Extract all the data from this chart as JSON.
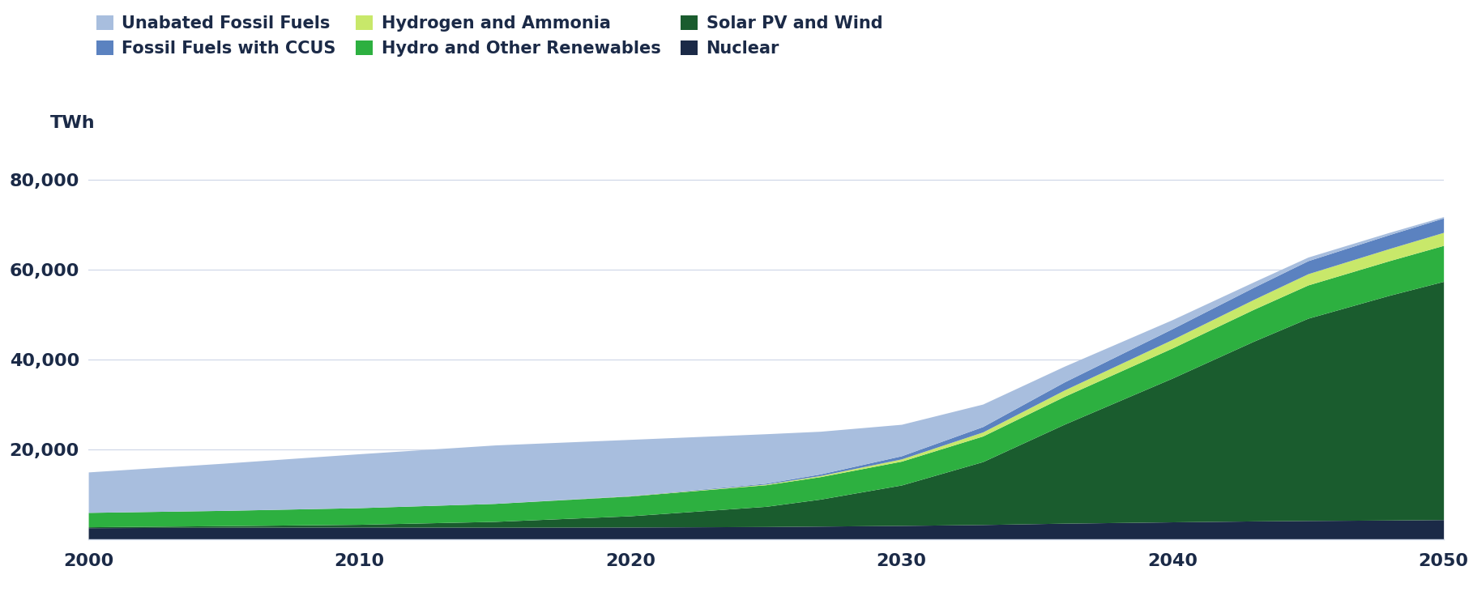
{
  "years": [
    2000,
    2005,
    2010,
    2015,
    2020,
    2025,
    2027,
    2030,
    2033,
    2036,
    2040,
    2043,
    2045,
    2048,
    2050
  ],
  "nuclear": [
    2600,
    2700,
    2750,
    2700,
    2750,
    2850,
    2950,
    3100,
    3300,
    3600,
    3900,
    4100,
    4200,
    4300,
    4400
  ],
  "solar_pv_wind": [
    200,
    350,
    600,
    1300,
    2500,
    4500,
    6000,
    9000,
    14000,
    22000,
    32000,
    40000,
    45000,
    50000,
    53000
  ],
  "hydro_other": [
    3200,
    3400,
    3700,
    4000,
    4400,
    4800,
    5000,
    5300,
    5700,
    6200,
    6700,
    7100,
    7400,
    7700,
    8000
  ],
  "hydrogen_ammonia": [
    0,
    0,
    0,
    0,
    50,
    150,
    250,
    500,
    900,
    1400,
    1900,
    2200,
    2500,
    2700,
    2900
  ],
  "fossil_ccus": [
    0,
    0,
    0,
    0,
    50,
    200,
    350,
    700,
    1200,
    1800,
    2400,
    2700,
    2900,
    3100,
    3200
  ],
  "unabated_fossil": [
    9000,
    10500,
    12000,
    13000,
    12500,
    11000,
    9500,
    7000,
    5000,
    3500,
    2000,
    1200,
    800,
    500,
    300
  ],
  "colors": {
    "nuclear": "#1b2a47",
    "solar_pv_wind": "#1a5c2e",
    "hydro_other": "#2db040",
    "hydrogen_ammonia": "#c8e86a",
    "fossil_ccus": "#5b82c0",
    "unabated_fossil": "#a8bede"
  },
  "legend_labels_row1": [
    "Unabated Fossil Fuels",
    "Fossil Fuels with CCUS",
    "Hydrogen and Ammonia"
  ],
  "legend_colors_row1": [
    "#a8bede",
    "#5b82c0",
    "#c8e86a"
  ],
  "legend_labels_row2": [
    "Hydro and Other Renewables",
    "Solar PV and Wind",
    "Nuclear"
  ],
  "legend_colors_row2": [
    "#2db040",
    "#1a5c2e",
    "#1b2a47"
  ],
  "ylabel": "TWh",
  "ylim": [
    0,
    90000
  ],
  "yticks": [
    0,
    20000,
    40000,
    60000,
    80000
  ],
  "ytick_labels": [
    "",
    "20,000",
    "40,000",
    "60,000",
    "80,000"
  ],
  "xticks": [
    2000,
    2010,
    2020,
    2030,
    2040,
    2050
  ],
  "background_color": "#ffffff",
  "text_color": "#1b2a47",
  "grid_color": "#d0d8e8"
}
